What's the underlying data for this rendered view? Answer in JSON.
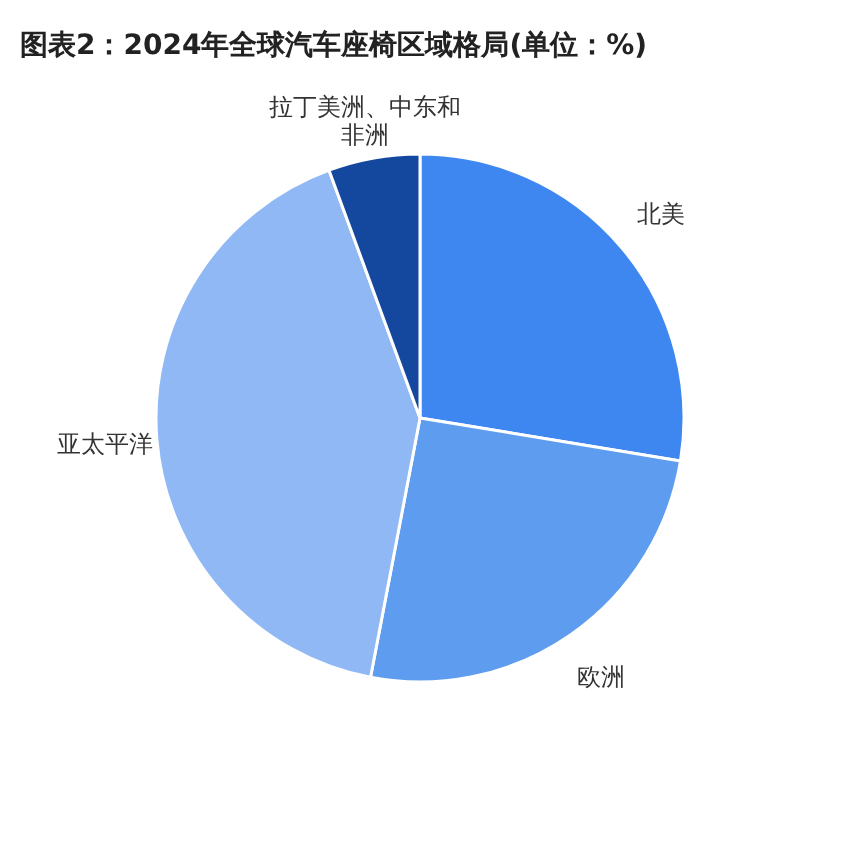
{
  "chart_data": {
    "type": "pie",
    "title": "图表2：2024年全球汽车座椅区域格局(单位：%)",
    "categories": [
      "北美",
      "欧洲",
      "亚太平洋",
      "拉丁美洲、中东和非洲"
    ],
    "values": [
      27.6,
      25.4,
      41.4,
      5.6
    ],
    "colors": [
      "#3f87f0",
      "#5e9cef",
      "#8fb8f4",
      "#14479e"
    ],
    "legend": false
  }
}
